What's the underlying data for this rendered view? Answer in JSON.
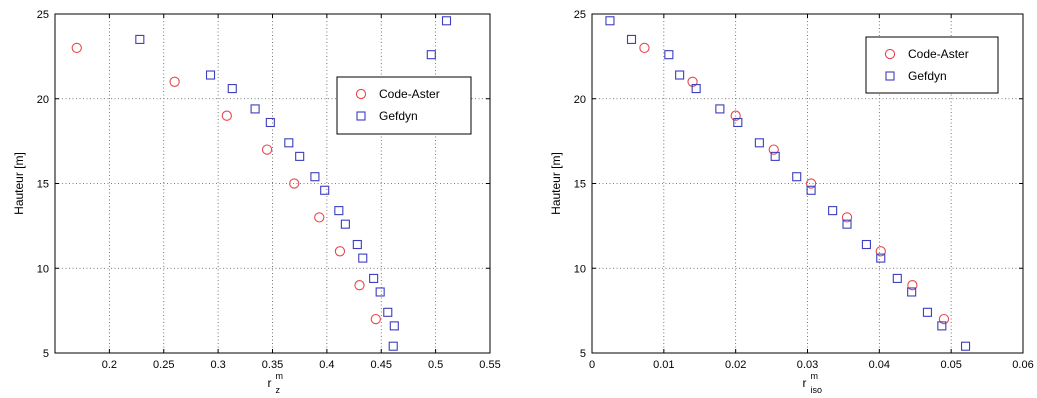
{
  "chart_data": [
    {
      "type": "scatter",
      "xlabel": "r",
      "xlabel_sup": "m",
      "xlabel_sub": "z",
      "ylabel": "Hauteur [m]",
      "xlim": [
        0.15,
        0.55
      ],
      "ylim": [
        5,
        25
      ],
      "xticks": [
        0.2,
        0.25,
        0.3,
        0.35,
        0.4,
        0.45,
        0.5,
        0.55
      ],
      "xtick_labels": [
        "0.2",
        "0.25",
        "0.3",
        "0.35",
        "0.4",
        "0.45",
        "0.5",
        "0.55"
      ],
      "yticks": [
        5,
        10,
        15,
        20,
        25
      ],
      "ytick_labels": [
        "5",
        "10",
        "15",
        "20",
        "25"
      ],
      "grid": true,
      "legend": "center-right",
      "series": [
        {
          "name": "Code-Aster",
          "marker": "circle",
          "color": "#e8474b",
          "x": [
            0.17,
            0.26,
            0.308,
            0.345,
            0.37,
            0.393,
            0.412,
            0.43,
            0.445
          ],
          "y": [
            23,
            21,
            19,
            17,
            15,
            13,
            11,
            9,
            7
          ]
        },
        {
          "name": "Gefdyn",
          "marker": "square",
          "color": "#3d3dbf",
          "x": [
            0.51,
            0.496,
            0.228,
            0.293,
            0.313,
            0.334,
            0.348,
            0.365,
            0.375,
            0.389,
            0.398,
            0.411,
            0.417,
            0.428,
            0.433,
            0.443,
            0.449,
            0.456,
            0.462,
            0.461
          ],
          "y": [
            24.6,
            22.6,
            23.5,
            21.4,
            20.6,
            19.4,
            18.6,
            17.4,
            16.6,
            15.4,
            14.6,
            13.4,
            12.6,
            11.4,
            10.6,
            9.4,
            8.6,
            7.4,
            6.6,
            5.4
          ]
        }
      ]
    },
    {
      "type": "scatter",
      "xlabel": "r",
      "xlabel_sup": "m",
      "xlabel_sub": "iso",
      "ylabel": "Hauteur [m]",
      "xlim": [
        0,
        0.06
      ],
      "ylim": [
        5,
        25
      ],
      "xticks": [
        0,
        0.01,
        0.02,
        0.03,
        0.04,
        0.05,
        0.06
      ],
      "xtick_labels": [
        "0",
        "0.01",
        "0.02",
        "0.03",
        "0.04",
        "0.05",
        "0.06"
      ],
      "yticks": [
        5,
        10,
        15,
        20,
        25
      ],
      "ytick_labels": [
        "5",
        "10",
        "15",
        "20",
        "25"
      ],
      "grid": true,
      "legend": "top-right",
      "series": [
        {
          "name": "Code-Aster",
          "marker": "circle",
          "color": "#e8474b",
          "x": [
            0.0073,
            0.014,
            0.02,
            0.0253,
            0.0305,
            0.0355,
            0.0402,
            0.0446,
            0.049
          ],
          "y": [
            23,
            21,
            19,
            17,
            15,
            13,
            11,
            9,
            7
          ]
        },
        {
          "name": "Gefdyn",
          "marker": "square",
          "color": "#3d3dbf",
          "x": [
            0.0025,
            0.0055,
            0.0107,
            0.0122,
            0.0145,
            0.0178,
            0.0203,
            0.0233,
            0.0255,
            0.0285,
            0.0305,
            0.0335,
            0.0355,
            0.0382,
            0.0402,
            0.0425,
            0.0445,
            0.0467,
            0.0487,
            0.052
          ],
          "y": [
            24.6,
            23.5,
            22.6,
            21.4,
            20.6,
            19.4,
            18.6,
            17.4,
            16.6,
            15.4,
            14.6,
            13.4,
            12.6,
            11.4,
            10.6,
            9.4,
            8.6,
            7.4,
            6.6,
            5.4
          ]
        }
      ]
    }
  ]
}
